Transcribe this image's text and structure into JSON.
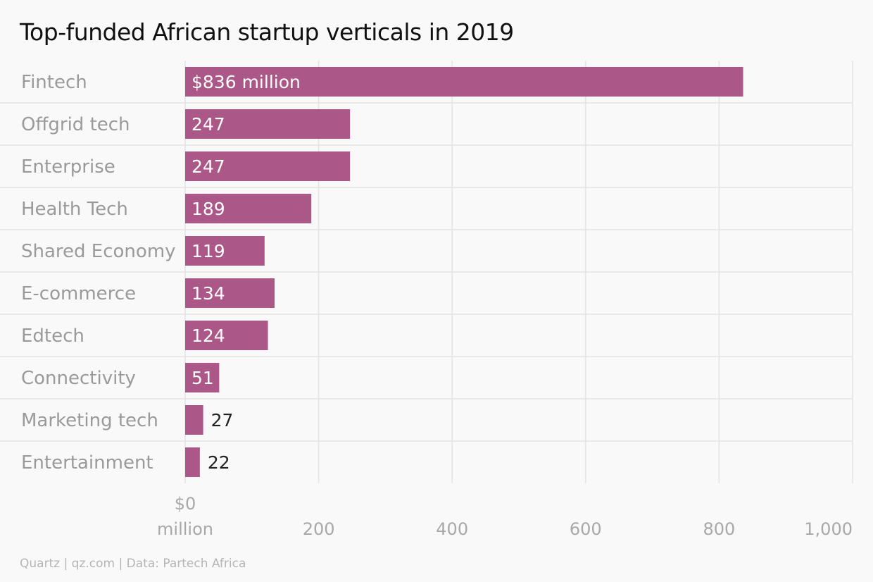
{
  "title": "Top-funded African startup verticals in 2019",
  "source": "Quartz | qz.com | Data: Partech Africa",
  "colors": {
    "bar": "#ab5787",
    "grid": "#e4e4e4",
    "background": "#f9f9f9"
  },
  "chart_data": {
    "type": "bar",
    "orientation": "horizontal",
    "title": "Top-funded African startup verticals in 2019",
    "categories": [
      "Fintech",
      "Offgrid tech",
      "Enterprise",
      "Health Tech",
      "Shared Economy",
      "E-commerce",
      "Edtech",
      "Connectivity",
      "Marketing tech",
      "Entertainment"
    ],
    "values": [
      836,
      247,
      247,
      189,
      119,
      134,
      124,
      51,
      27,
      22
    ],
    "value_labels": [
      "$836 million",
      "247",
      "247",
      "189",
      "119",
      "134",
      "124",
      "51",
      "27",
      "22"
    ],
    "xlim": [
      0,
      1000
    ],
    "x_ticks": [
      0,
      200,
      400,
      600,
      800,
      1000
    ],
    "x_tick_labels": [
      "$0",
      "200",
      "400",
      "600",
      "800",
      "1,000"
    ],
    "x_tick_sublabel": "million",
    "grid": true,
    "legend": "none"
  }
}
